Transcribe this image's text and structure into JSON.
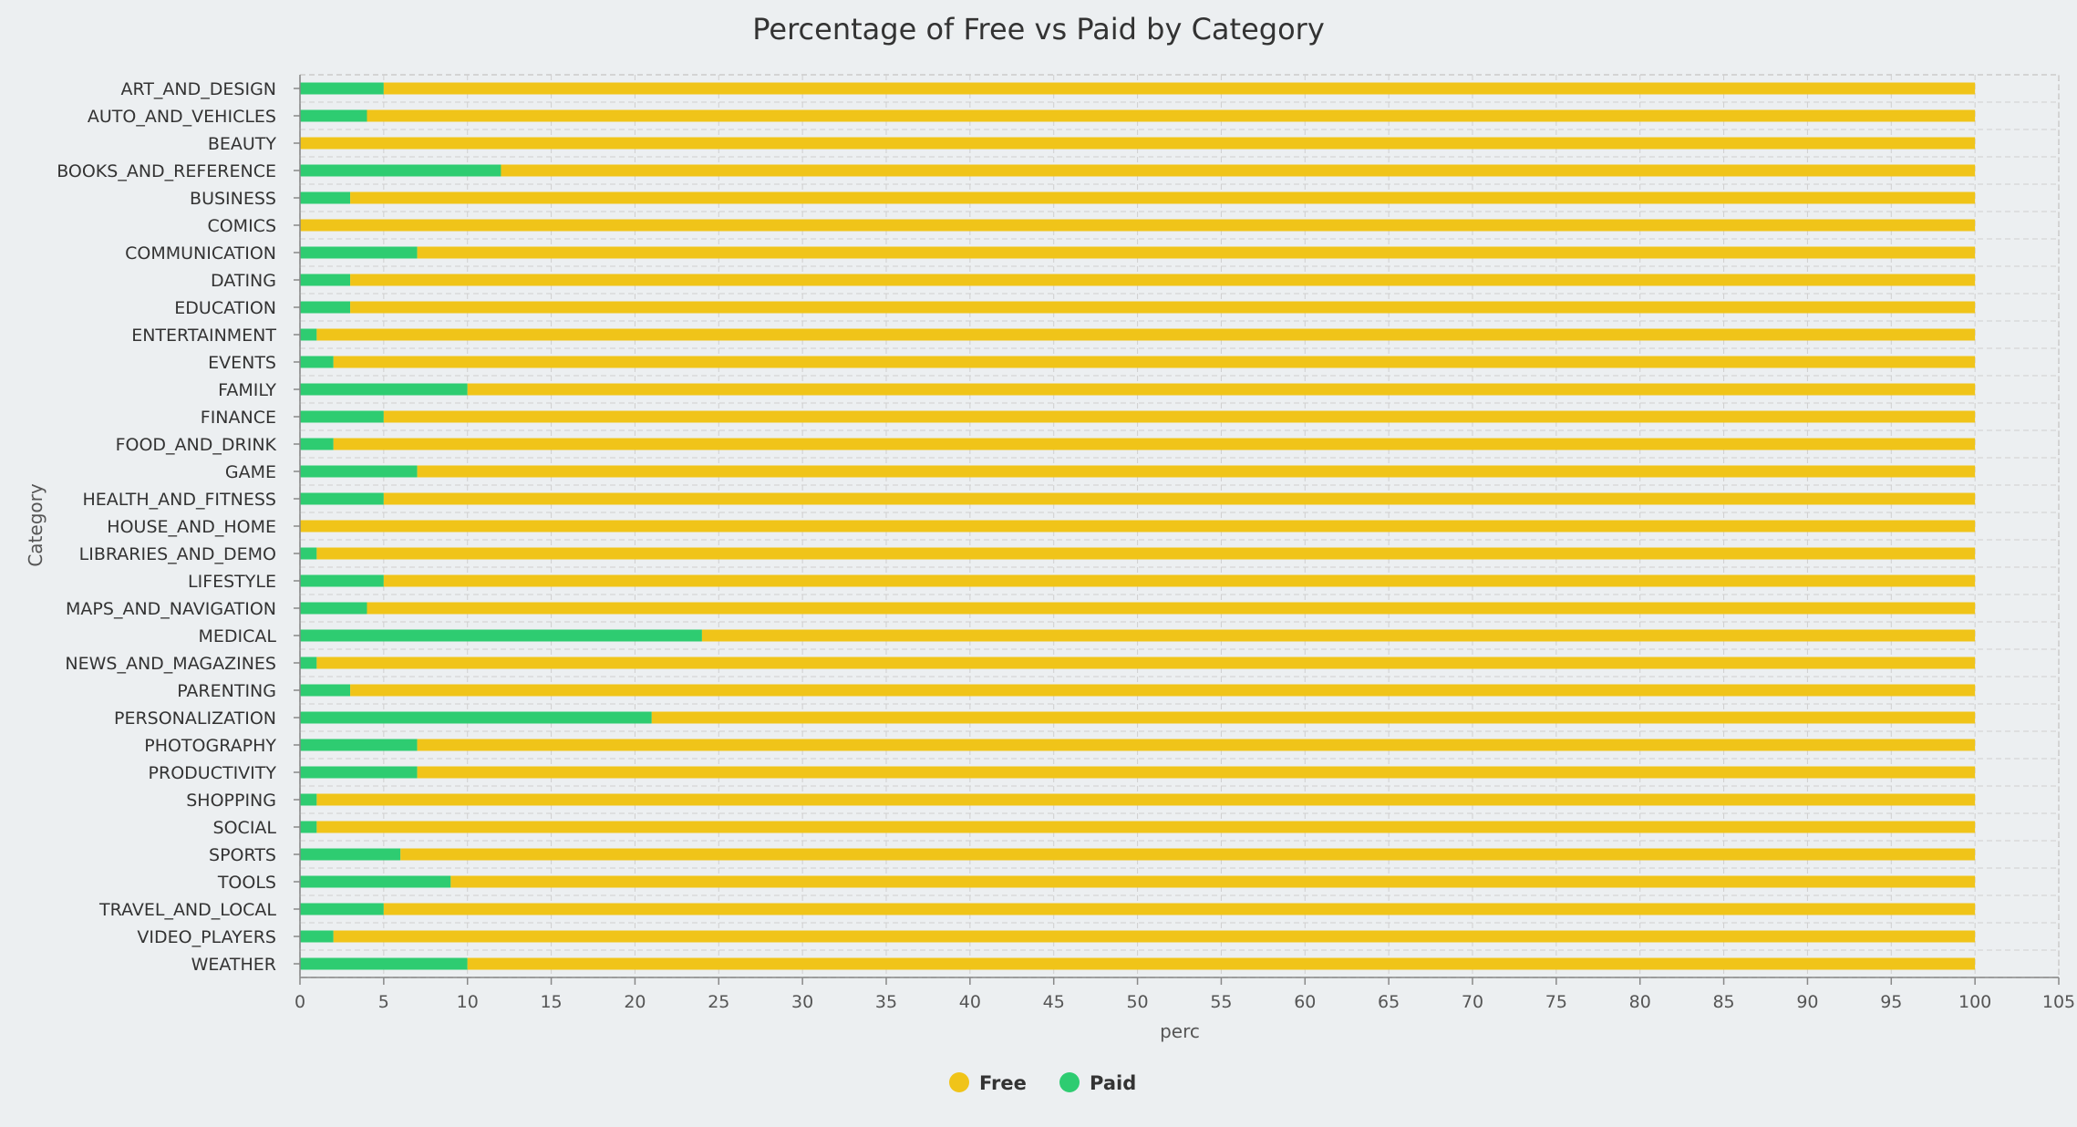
{
  "chart_data": {
    "type": "bar",
    "orientation": "horizontal",
    "stacked": true,
    "title": "Percentage of Free vs Paid by Category",
    "xlabel": "perc",
    "ylabel": "Category",
    "xlim": [
      0,
      105
    ],
    "xticks": [
      "0",
      "5",
      "10",
      "15",
      "20",
      "25",
      "30",
      "35",
      "40",
      "45",
      "50",
      "55",
      "60",
      "65",
      "70",
      "75",
      "80",
      "85",
      "90",
      "95",
      "100",
      "105"
    ],
    "grid": true,
    "legend_position": "bottom",
    "colors": {
      "Free": "#f0c419",
      "Paid": "#2ecc71"
    },
    "categories": [
      "ART_AND_DESIGN",
      "AUTO_AND_VEHICLES",
      "BEAUTY",
      "BOOKS_AND_REFERENCE",
      "BUSINESS",
      "COMICS",
      "COMMUNICATION",
      "DATING",
      "EDUCATION",
      "ENTERTAINMENT",
      "EVENTS",
      "FAMILY",
      "FINANCE",
      "FOOD_AND_DRINK",
      "GAME",
      "HEALTH_AND_FITNESS",
      "HOUSE_AND_HOME",
      "LIBRARIES_AND_DEMO",
      "LIFESTYLE",
      "MAPS_AND_NAVIGATION",
      "MEDICAL",
      "NEWS_AND_MAGAZINES",
      "PARENTING",
      "PERSONALIZATION",
      "PHOTOGRAPHY",
      "PRODUCTIVITY",
      "SHOPPING",
      "SOCIAL",
      "SPORTS",
      "TOOLS",
      "TRAVEL_AND_LOCAL",
      "VIDEO_PLAYERS",
      "WEATHER"
    ],
    "series": [
      {
        "name": "Paid",
        "values": [
          5,
          4,
          0,
          12,
          3,
          0,
          7,
          3,
          3,
          1,
          2,
          10,
          5,
          2,
          7,
          5,
          0,
          1,
          5,
          4,
          24,
          1,
          3,
          21,
          7,
          7,
          1,
          1,
          6,
          9,
          5,
          2,
          10
        ]
      },
      {
        "name": "Free",
        "values": [
          95,
          96,
          100,
          88,
          97,
          100,
          93,
          97,
          97,
          99,
          98,
          90,
          95,
          98,
          93,
          95,
          100,
          99,
          95,
          96,
          76,
          99,
          97,
          79,
          93,
          93,
          99,
          99,
          94,
          91,
          95,
          98,
          90
        ]
      }
    ],
    "legend": [
      "Free",
      "Paid"
    ]
  }
}
